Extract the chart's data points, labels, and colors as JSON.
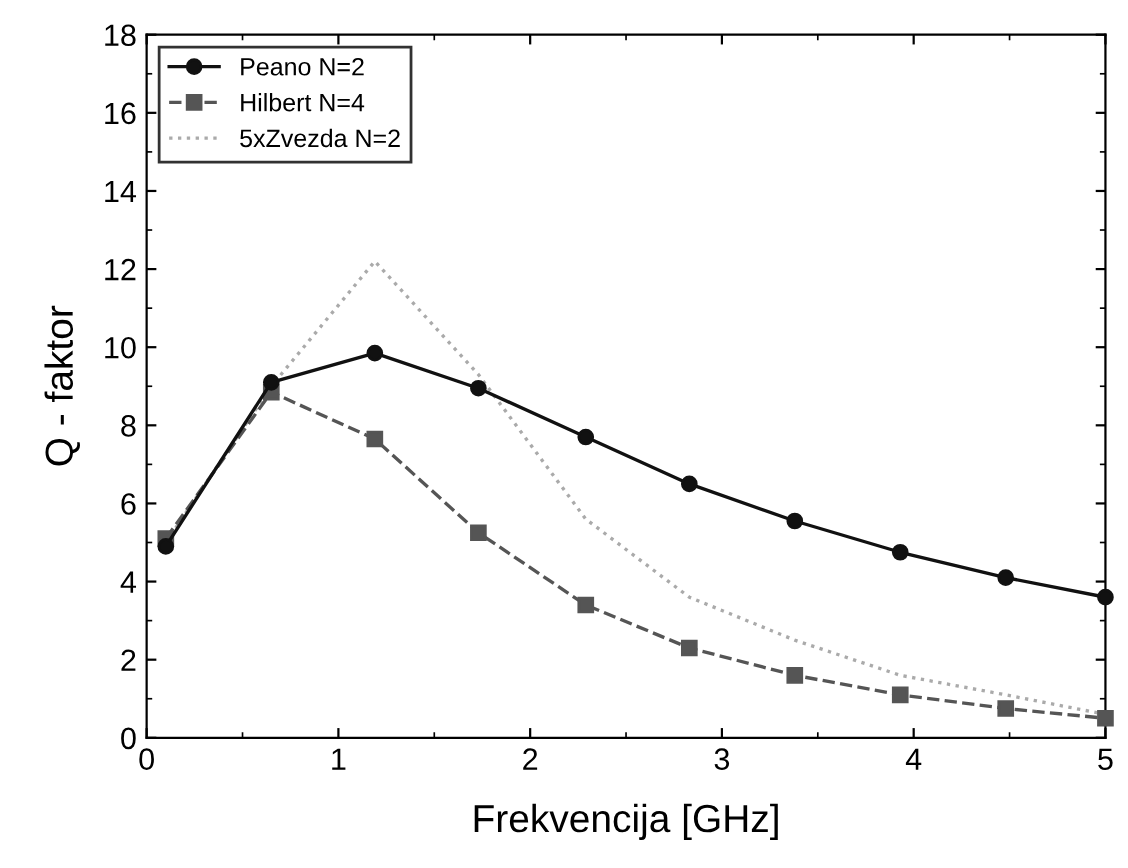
{
  "chart_data": {
    "type": "line",
    "xlabel": "Frekvencija [GHz]",
    "ylabel": "Q - faktor",
    "xlim": [
      0,
      5
    ],
    "ylim": [
      0,
      18
    ],
    "xticks": [
      0,
      1,
      2,
      3,
      4,
      5
    ],
    "yticks": [
      0,
      2,
      4,
      6,
      8,
      10,
      12,
      14,
      16,
      18
    ],
    "grid": false,
    "legend": "top left",
    "x": [
      0.1,
      0.65,
      1.19,
      1.73,
      2.29,
      2.83,
      3.38,
      3.93,
      4.48,
      5.0
    ],
    "series": [
      {
        "name": "Peano N=2",
        "color": "#111111",
        "marker": "circle",
        "line_style": "solid",
        "values": [
          4.9,
          9.1,
          9.85,
          8.95,
          7.7,
          6.5,
          5.55,
          4.75,
          4.1,
          3.6
        ]
      },
      {
        "name": "Hilbert N=4",
        "color": "#555555",
        "marker": "square",
        "line_style": "dashed",
        "values": [
          5.1,
          8.85,
          7.65,
          5.25,
          3.4,
          2.3,
          1.6,
          1.1,
          0.75,
          0.5
        ]
      },
      {
        "name": "5xZvezda N=2",
        "color": "#aaaaaa",
        "marker": "none",
        "line_style": "dotted",
        "values": [
          5.0,
          9.0,
          12.2,
          9.3,
          5.6,
          3.6,
          2.5,
          1.6,
          1.1,
          0.6
        ]
      }
    ]
  }
}
